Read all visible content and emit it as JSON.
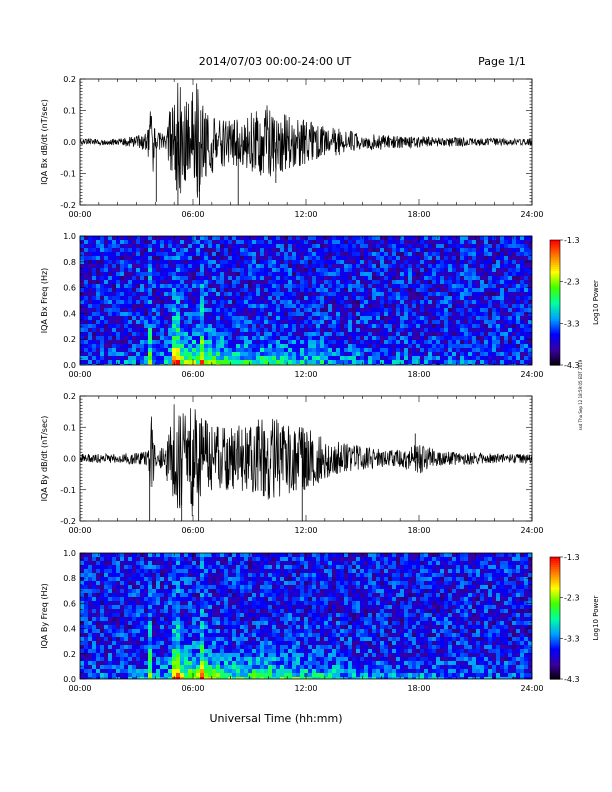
{
  "header": {
    "title": "2014/07/03  00:00-24:00 UT",
    "page": "Page 1/1"
  },
  "footer": {
    "xlabel": "Universal Time (hh:mm)",
    "side_note": "ssd Thu Sep 12 18:59:05 EDT 2019"
  },
  "colorbar": {
    "label": "Log10 Power",
    "ticks": [
      "-1.3",
      "-2.3",
      "-3.3",
      "-4.3"
    ],
    "values": [
      -1.3,
      -2.3,
      -3.3,
      -4.3
    ],
    "range": [
      -4.3,
      -1.3
    ],
    "colors": [
      "#000000",
      "#3a00a0",
      "#0000ff",
      "#00a0ff",
      "#00ffa0",
      "#40ff00",
      "#ffff00",
      "#ff8000",
      "#ff0000"
    ]
  },
  "chart_data": [
    {
      "type": "line",
      "ylabel": "IQA Bx dB/dt (nT/sec)",
      "xlim": [
        0,
        24
      ],
      "ylim": [
        -0.2,
        0.2
      ],
      "xticks": [
        "00:00",
        "06:00",
        "12:00",
        "18:00",
        "24:00"
      ],
      "yticks": [
        "0.2",
        "0.1",
        "0.0",
        "-0.1",
        "-0.2"
      ],
      "ytick_values": [
        0.2,
        0.1,
        0.0,
        -0.1,
        -0.2
      ],
      "x": [
        0,
        2,
        3,
        3.6,
        3.8,
        4,
        4.5,
        4.9,
        5.0,
        5.1,
        5.3,
        5.5,
        5.8,
        6.0,
        6.2,
        6.5,
        7,
        8,
        9,
        10,
        10.5,
        11,
        12,
        13,
        14,
        15,
        16,
        17,
        18,
        19,
        20,
        21,
        22,
        23,
        24
      ],
      "envelope": [
        0.01,
        0.01,
        0.02,
        0.04,
        0.15,
        0.03,
        0.03,
        0.15,
        0.12,
        0.21,
        0.22,
        0.15,
        0.12,
        0.18,
        0.21,
        0.12,
        0.1,
        0.07,
        0.09,
        0.12,
        0.1,
        0.09,
        0.07,
        0.05,
        0.04,
        0.03,
        0.025,
        0.02,
        0.02,
        0.015,
        0.015,
        0.012,
        0.012,
        0.01,
        0.01
      ],
      "spikes": [
        {
          "x": 4.05,
          "y": -0.19
        },
        {
          "x": 5.2,
          "y": -0.22
        },
        {
          "x": 6.35,
          "y": -0.22
        },
        {
          "x": 8.4,
          "y": -0.2
        },
        {
          "x": 10.4,
          "y": -0.13
        }
      ]
    },
    {
      "type": "heatmap",
      "ylabel": "IQA Bx Freq (Hz)",
      "xlim": [
        0,
        24
      ],
      "ylim": [
        0.0,
        1.0
      ],
      "xticks": [
        "00:00",
        "06:00",
        "12:00",
        "18:00",
        "24:00"
      ],
      "yticks": [
        "1.0",
        "0.8",
        "0.6",
        "0.4",
        "0.2",
        "0.0"
      ],
      "ytick_values": [
        1.0,
        0.8,
        0.6,
        0.4,
        0.2,
        0.0
      ],
      "background_log_power": -3.6,
      "activity_x": [
        0,
        3,
        4.5,
        5,
        6,
        6.5,
        8,
        10,
        12,
        14,
        16,
        18,
        20,
        24
      ],
      "activity_level": [
        0.2,
        0.3,
        0.5,
        1.0,
        0.9,
        1.0,
        0.65,
        0.7,
        0.55,
        0.4,
        0.3,
        0.25,
        0.2,
        0.15
      ],
      "bright_lines_hours": [
        3.7,
        4.9,
        5.1,
        6.4
      ]
    },
    {
      "type": "line",
      "ylabel": "IQA By dB/dt (nT/sec)",
      "xlim": [
        0,
        24
      ],
      "ylim": [
        -0.2,
        0.2
      ],
      "xticks": [
        "00:00",
        "06:00",
        "12:00",
        "18:00",
        "24:00"
      ],
      "yticks": [
        "0.2",
        "0.1",
        "0.0",
        "-0.1",
        "-0.2"
      ],
      "ytick_values": [
        0.2,
        0.1,
        0.0,
        -0.1,
        -0.2
      ],
      "x": [
        0,
        2,
        3,
        3.6,
        3.8,
        4,
        4.5,
        4.9,
        5.0,
        5.1,
        5.3,
        5.5,
        5.8,
        6.0,
        6.2,
        6.5,
        7,
        8,
        9,
        10,
        10.5,
        11,
        12,
        13,
        14,
        15,
        16,
        17,
        18,
        19,
        20,
        21,
        22,
        23,
        24
      ],
      "envelope": [
        0.015,
        0.015,
        0.02,
        0.03,
        0.17,
        0.03,
        0.04,
        0.17,
        0.2,
        0.22,
        0.18,
        0.15,
        0.13,
        0.22,
        0.15,
        0.13,
        0.12,
        0.1,
        0.12,
        0.14,
        0.13,
        0.12,
        0.1,
        0.07,
        0.05,
        0.04,
        0.03,
        0.03,
        0.05,
        0.025,
        0.02,
        0.02,
        0.015,
        0.015,
        0.015
      ],
      "spikes": [
        {
          "x": 3.7,
          "y": -0.22
        },
        {
          "x": 5.4,
          "y": -0.22
        },
        {
          "x": 6.3,
          "y": -0.2
        },
        {
          "x": 11.8,
          "y": -0.2
        },
        {
          "x": 17.8,
          "y": 0.08
        }
      ]
    },
    {
      "type": "heatmap",
      "ylabel": "IQA By Freq (Hz)",
      "xlim": [
        0,
        24
      ],
      "ylim": [
        0.0,
        1.0
      ],
      "xticks": [
        "00:00",
        "06:00",
        "12:00",
        "18:00",
        "24:00"
      ],
      "yticks": [
        "1.0",
        "0.8",
        "0.6",
        "0.4",
        "0.2",
        "0.0"
      ],
      "ytick_values": [
        1.0,
        0.8,
        0.6,
        0.4,
        0.2,
        0.0
      ],
      "background_log_power": -3.6,
      "activity_x": [
        0,
        3,
        4.5,
        5,
        6,
        6.5,
        8,
        10,
        12,
        14,
        16,
        18,
        20,
        24
      ],
      "activity_level": [
        0.2,
        0.3,
        0.55,
        1.0,
        0.95,
        1.0,
        0.7,
        0.75,
        0.65,
        0.45,
        0.35,
        0.3,
        0.25,
        0.2
      ],
      "bright_lines_hours": [
        3.7,
        4.9,
        5.1,
        6.4
      ]
    }
  ]
}
